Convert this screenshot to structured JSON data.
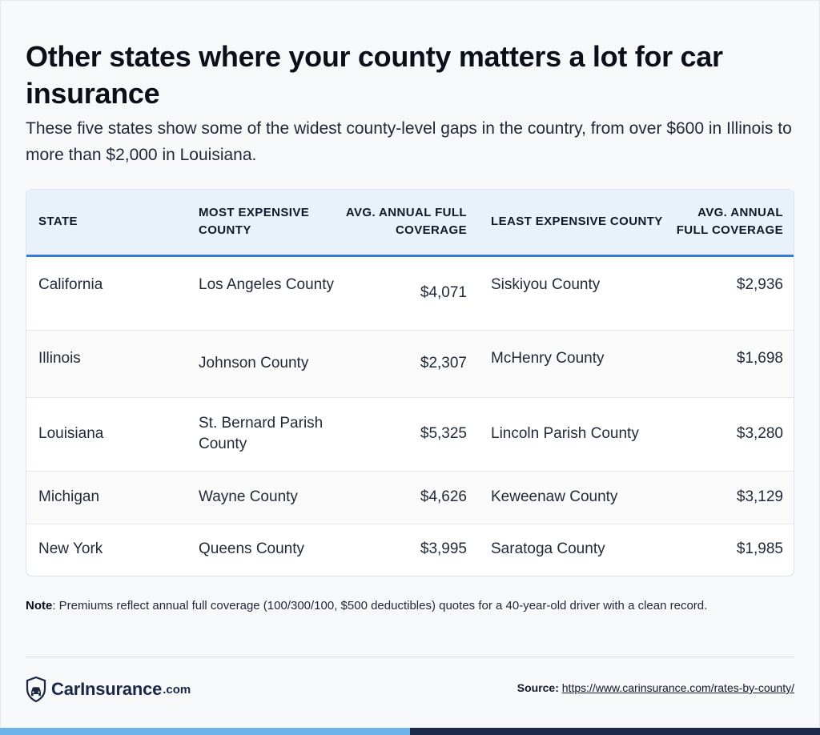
{
  "title": "Other states where your county matters a lot for car insurance",
  "subtitle": "These five states show some of the widest county-level gaps in the country, from over $600 in Illinois to more than $2,000 in Louisiana.",
  "table": {
    "headers": {
      "state": "STATE",
      "most_expensive": "MOST EXPENSIVE COUNTY",
      "avg_high": "AVG. ANNUAL FULL COVERAGE",
      "least_expensive": "LEAST EXPENSIVE COUNTY",
      "avg_low": "AVG. ANNUAL FULL COVERAGE"
    },
    "rows": [
      {
        "state": "California",
        "most_expensive": "Los Angeles County",
        "avg_high": "$4,071",
        "least_expensive": "Siskiyou County",
        "avg_low": "$2,936"
      },
      {
        "state": "Illinois",
        "most_expensive": "Johnson County",
        "avg_high": "$2,307",
        "least_expensive": "McHenry County",
        "avg_low": "$1,698"
      },
      {
        "state": "Louisiana",
        "most_expensive": "St. Bernard Parish County",
        "avg_high": "$5,325",
        "least_expensive": "Lincoln Parish County",
        "avg_low": "$3,280"
      },
      {
        "state": "Michigan",
        "most_expensive": "Wayne County",
        "avg_high": "$4,626",
        "least_expensive": "Keweenaw County",
        "avg_low": "$3,129"
      },
      {
        "state": "New York",
        "most_expensive": "Queens County",
        "avg_high": "$3,995",
        "least_expensive": "Saratoga County",
        "avg_low": "$1,985"
      }
    ]
  },
  "note": {
    "label": "Note",
    "text": ": Premiums reflect annual full coverage (100/300/100, $500 deductibles) quotes for a 40-year-old driver with a clean record."
  },
  "footer": {
    "logo_name": "CarInsurance",
    "logo_tld": ".com",
    "source_label": "Source:",
    "source_url": "https://www.carinsurance.com/rates-by-county/"
  },
  "colors": {
    "header_bg": "#e9f1fb",
    "header_rule": "#2d7fd9",
    "bar_left": "#6cb4ea",
    "bar_right": "#1b2a4a",
    "brand": "#1a2744"
  },
  "icons": {
    "logo": "shield-car-icon"
  }
}
